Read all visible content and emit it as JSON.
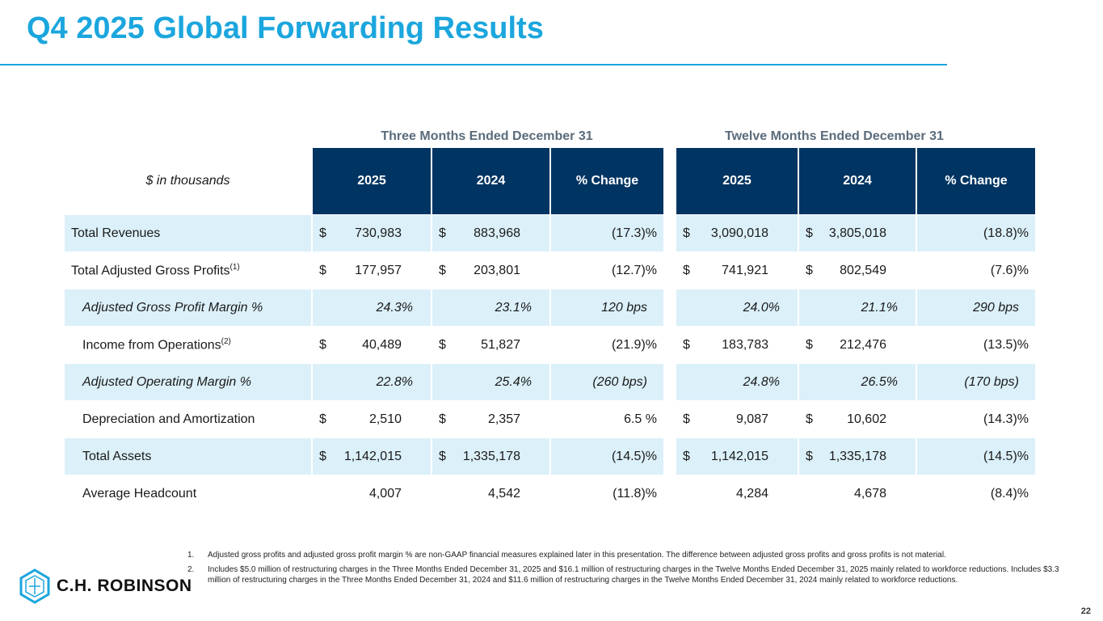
{
  "title": "Q4 2025 Global Forwarding Results",
  "groups": {
    "three": "Three Months Ended December 31",
    "twelve": "Twelve Months Ended December 31"
  },
  "table": {
    "unit_label": "$ in thousands",
    "columns": [
      "2025",
      "2024",
      "% Change",
      "2025",
      "2024",
      "% Change"
    ],
    "rows": [
      {
        "label": "Total Revenues",
        "sup": "",
        "v": [
          "730,983",
          "883,968",
          "(17.3)%",
          "3,090,018",
          "3,805,018",
          "(18.8)%"
        ]
      },
      {
        "label": "Total Adjusted Gross Profits",
        "sup": "(1)",
        "v": [
          "177,957",
          "203,801",
          "(12.7)%",
          "741,921",
          "802,549",
          "(7.6)%"
        ]
      },
      {
        "label": "Adjusted Gross Profit Margin %",
        "sup": "",
        "v": [
          "24.3%",
          "23.1%",
          "120 bps",
          "24.0%",
          "21.1%",
          "290 bps"
        ]
      },
      {
        "label": "Income from Operations",
        "sup": "(2)",
        "v": [
          "40,489",
          "51,827",
          "(21.9)%",
          "183,783",
          "212,476",
          "(13.5)%"
        ]
      },
      {
        "label": "Adjusted Operating Margin %",
        "sup": "",
        "v": [
          "22.8%",
          "25.4%",
          "(260 bps)",
          "24.8%",
          "26.5%",
          "(170 bps)"
        ]
      },
      {
        "label": "Depreciation and Amortization",
        "sup": "",
        "v": [
          "2,510",
          "2,357",
          "6.5 %",
          "9,087",
          "10,602",
          "(14.3)%"
        ]
      },
      {
        "label": "Total Assets",
        "sup": "",
        "v": [
          "1,142,015",
          "1,335,178",
          "(14.5)%",
          "1,142,015",
          "1,335,178",
          "(14.5)%"
        ]
      },
      {
        "label": "Average Headcount",
        "sup": "",
        "v": [
          "4,007",
          "4,542",
          "(11.8)%",
          "4,284",
          "4,678",
          "(8.4)%"
        ]
      }
    ],
    "currency": "$"
  },
  "footnotes": [
    {
      "n": "1.",
      "text": "Adjusted gross profits and adjusted gross profit margin % are non-GAAP financial measures explained later in this presentation. The difference between adjusted gross profits and gross profits is not material."
    },
    {
      "n": "2.",
      "text": "Includes $5.0 million of restructuring charges in the Three Months Ended December 31, 2025 and $16.1 million of restructuring charges in the Twelve Months Ended December 31, 2025 mainly related to workforce reductions. Includes $3.3 million of restructuring charges in the Three Months Ended December 31, 2024 and $11.6 million of restructuring charges in the Twelve Months Ended December 31, 2024 mainly related to workforce reductions."
    }
  ],
  "logo": "C.H. ROBINSON",
  "page_number": "22",
  "colors": {
    "accent": "#1ba6dd",
    "header": "#003462",
    "shade": "#dbf0f9"
  }
}
